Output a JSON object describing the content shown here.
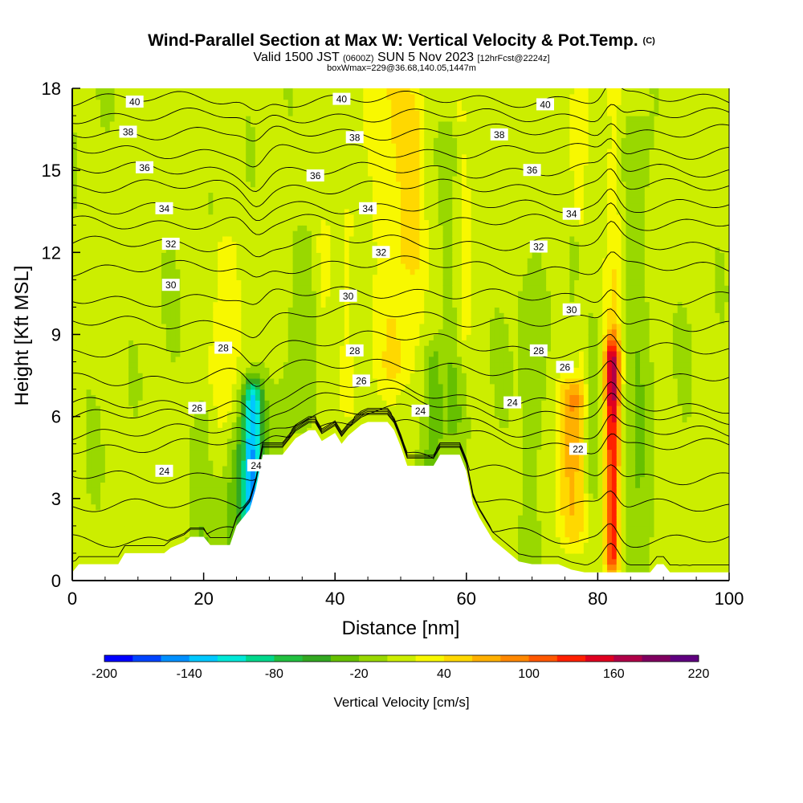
{
  "chart_data": {
    "type": "heatmap",
    "title": "Wind-Parallel Section at Max W: Vertical Velocity & Pot.Temp.",
    "title_mark": "(C)",
    "subtitle_parts": {
      "a": "Valid 1500 JST ",
      "b": "(0600Z)",
      "c": " SUN 5 Nov 2023 ",
      "d": "[12hrFcst@2224z]"
    },
    "subtitle2": "boxWmax=229@36.68,140.05,1447m",
    "xlabel": "Distance [nm]",
    "ylabel": "Height [Kft MSL]",
    "xlim": [
      0,
      100
    ],
    "ylim": [
      0,
      18
    ],
    "x_ticks": [
      "0",
      "20",
      "40",
      "60",
      "80",
      "100"
    ],
    "y_ticks": [
      "0",
      "3",
      "6",
      "9",
      "12",
      "15",
      "18"
    ],
    "colorbar": {
      "title": "Vertical Velocity [cm/s]",
      "labels": [
        "-200",
        "-140",
        "-80",
        "-20",
        "40",
        "100",
        "160",
        "220"
      ],
      "colors": [
        "#0000ff",
        "#0044ff",
        "#0090ff",
        "#00c8ff",
        "#00e8d8",
        "#00d88c",
        "#22c040",
        "#33a821",
        "#66c000",
        "#99d800",
        "#ccee00",
        "#f8f800",
        "#ffd800",
        "#ffb000",
        "#ff8800",
        "#ff5800",
        "#ff2000",
        "#e00020",
        "#b00048",
        "#800060",
        "#600080"
      ]
    },
    "velocity_features": [
      {
        "x": 2,
        "y0": 0.5,
        "y1": 18,
        "w": 3.5,
        "v": 5
      },
      {
        "x": 14,
        "y0": 3,
        "y1": 14,
        "w": 3,
        "v": 5
      },
      {
        "x": 23,
        "y0": 5,
        "y1": 12,
        "w": 2,
        "v": 35
      },
      {
        "x": 20,
        "y0": 1.5,
        "y1": 6,
        "w": 2,
        "v": -20
      },
      {
        "x": 25,
        "y0": 1,
        "y1": 5,
        "w": 2.5,
        "v": -25
      },
      {
        "x": 27.5,
        "y0": 2,
        "y1": 6.5,
        "w": 1.6,
        "v": -150
      },
      {
        "x": 35,
        "y0": 6.5,
        "y1": 12,
        "w": 2.5,
        "v": -20
      },
      {
        "x": 38,
        "y0": 6,
        "y1": 12,
        "w": 1.5,
        "v": 30
      },
      {
        "x": 42,
        "y0": 7,
        "y1": 13,
        "w": 1.5,
        "v": 30
      },
      {
        "x": 49,
        "y0": 8,
        "y1": 18,
        "w": 3,
        "v": 45
      },
      {
        "x": 52,
        "y0": 12,
        "y1": 17,
        "w": 2,
        "v": 40
      },
      {
        "x": 55,
        "y0": 4.5,
        "y1": 8,
        "w": 1.5,
        "v": -40
      },
      {
        "x": 58,
        "y0": 6,
        "y1": 16,
        "w": 1.5,
        "v": -25
      },
      {
        "x": 59,
        "y0": 9,
        "y1": 17,
        "w": 1.5,
        "v": 35
      },
      {
        "x": 66,
        "y0": 0.5,
        "y1": 12,
        "w": 3,
        "v": 5
      },
      {
        "x": 70,
        "y0": 1,
        "y1": 10,
        "w": 2,
        "v": -15
      },
      {
        "x": 76,
        "y0": 2,
        "y1": 6.5,
        "w": 2.2,
        "v": 70
      },
      {
        "x": 77,
        "y0": 7,
        "y1": 17,
        "w": 1.5,
        "v": 40
      },
      {
        "x": 76.5,
        "y0": 8,
        "y1": 12,
        "w": 1,
        "v": -30
      },
      {
        "x": 79,
        "y0": 4,
        "y1": 9,
        "w": 1.2,
        "v": -20
      },
      {
        "x": 82.2,
        "y0": 1,
        "y1": 8,
        "w": 1.1,
        "v": 160
      },
      {
        "x": 82.5,
        "y0": 7,
        "y1": 18,
        "w": 1.2,
        "v": 40
      },
      {
        "x": 86,
        "y0": 0.5,
        "y1": 16,
        "w": 2,
        "v": -20
      },
      {
        "x": 94,
        "y0": 0.5,
        "y1": 18,
        "w": 3,
        "v": 5
      }
    ],
    "terrain": {
      "x": [
        0,
        1,
        7,
        8,
        14,
        15,
        17,
        18,
        20,
        21,
        24,
        25,
        27,
        28,
        29,
        30,
        32,
        34,
        36,
        37,
        38,
        40,
        41,
        42,
        43,
        44,
        45,
        46,
        47,
        48,
        49,
        50,
        51,
        52,
        53,
        54,
        55,
        56,
        57,
        58,
        59,
        60,
        61,
        62,
        63,
        64,
        65,
        66,
        67,
        68,
        70,
        72,
        74,
        76,
        78,
        80,
        82,
        84,
        88,
        89,
        90,
        91,
        92,
        94,
        96,
        98,
        100
      ],
      "kft": [
        0.3,
        0.6,
        0.6,
        1.0,
        1.0,
        1.2,
        1.4,
        1.6,
        1.6,
        1.3,
        1.3,
        2.0,
        2.6,
        3.4,
        4.6,
        4.6,
        4.6,
        5.2,
        5.5,
        5.5,
        5.1,
        5.4,
        5.0,
        5.3,
        5.5,
        5.7,
        5.8,
        5.8,
        5.8,
        5.8,
        5.5,
        4.9,
        4.2,
        4.2,
        4.2,
        4.2,
        4.2,
        4.6,
        4.6,
        4.6,
        4.6,
        4.0,
        2.8,
        2.3,
        1.9,
        1.5,
        1.3,
        1.1,
        0.9,
        0.7,
        0.6,
        0.6,
        0.6,
        0.4,
        0.3,
        0.3,
        0.3,
        0.3,
        0.3,
        0.6,
        0.6,
        0.3,
        0.3,
        0.3,
        0.3,
        0.3,
        0.3
      ]
    },
    "theta_levels": [
      {
        "base": 0.5,
        "label": null
      },
      {
        "base": 1.5,
        "label": null
      },
      {
        "base": 2.7,
        "label": null
      },
      {
        "base": 3.8,
        "label": "24",
        "label_pos": [
          [
            14,
            4.0
          ],
          [
            28,
            4.2
          ]
        ]
      },
      {
        "base": 4.9,
        "label": "22",
        "label_pos": [
          [
            77,
            4.8
          ]
        ]
      },
      {
        "base": 5.4,
        "label": null
      },
      {
        "base": 6.0,
        "label": "26",
        "label_pos": [
          [
            19,
            6.3
          ]
        ]
      },
      {
        "base": 6.4,
        "label": "24",
        "label_pos": [
          [
            53,
            6.2
          ],
          [
            67,
            6.5
          ]
        ]
      },
      {
        "base": 7.4,
        "label": "26",
        "label_pos": [
          [
            44,
            7.3
          ],
          [
            75,
            7.8
          ]
        ]
      },
      {
        "base": 8.4,
        "label": "28",
        "label_pos": [
          [
            23,
            8.5
          ],
          [
            43,
            8.4
          ],
          [
            71,
            8.4
          ]
        ]
      },
      {
        "base": 9.4,
        "label": null
      },
      {
        "base": 10.3,
        "label": "30",
        "label_pos": [
          [
            15,
            10.8
          ],
          [
            42,
            10.4
          ],
          [
            76,
            9.9
          ]
        ]
      },
      {
        "base": 11.4,
        "label": null
      },
      {
        "base": 12.3,
        "label": "32",
        "label_pos": [
          [
            15,
            12.3
          ],
          [
            47,
            12.0
          ],
          [
            71,
            12.2
          ]
        ]
      },
      {
        "base": 13.1,
        "label": null
      },
      {
        "base": 13.7,
        "label": "34",
        "label_pos": [
          [
            14,
            13.6
          ],
          [
            45,
            13.6
          ],
          [
            76,
            13.4
          ]
        ]
      },
      {
        "base": 14.4,
        "label": null
      },
      {
        "base": 15.0,
        "label": "36",
        "label_pos": [
          [
            11,
            15.1
          ],
          [
            37,
            14.8
          ],
          [
            70,
            15.0
          ]
        ]
      },
      {
        "base": 15.7,
        "label": null
      },
      {
        "base": 16.4,
        "label": "38",
        "label_pos": [
          [
            8.5,
            16.4
          ],
          [
            43,
            16.2
          ],
          [
            65,
            16.3
          ]
        ]
      },
      {
        "base": 17.0,
        "label": null
      },
      {
        "base": 17.6,
        "label": "40",
        "label_pos": [
          [
            9.5,
            17.5
          ],
          [
            41,
            17.6
          ],
          [
            72,
            17.4
          ]
        ]
      }
    ]
  }
}
